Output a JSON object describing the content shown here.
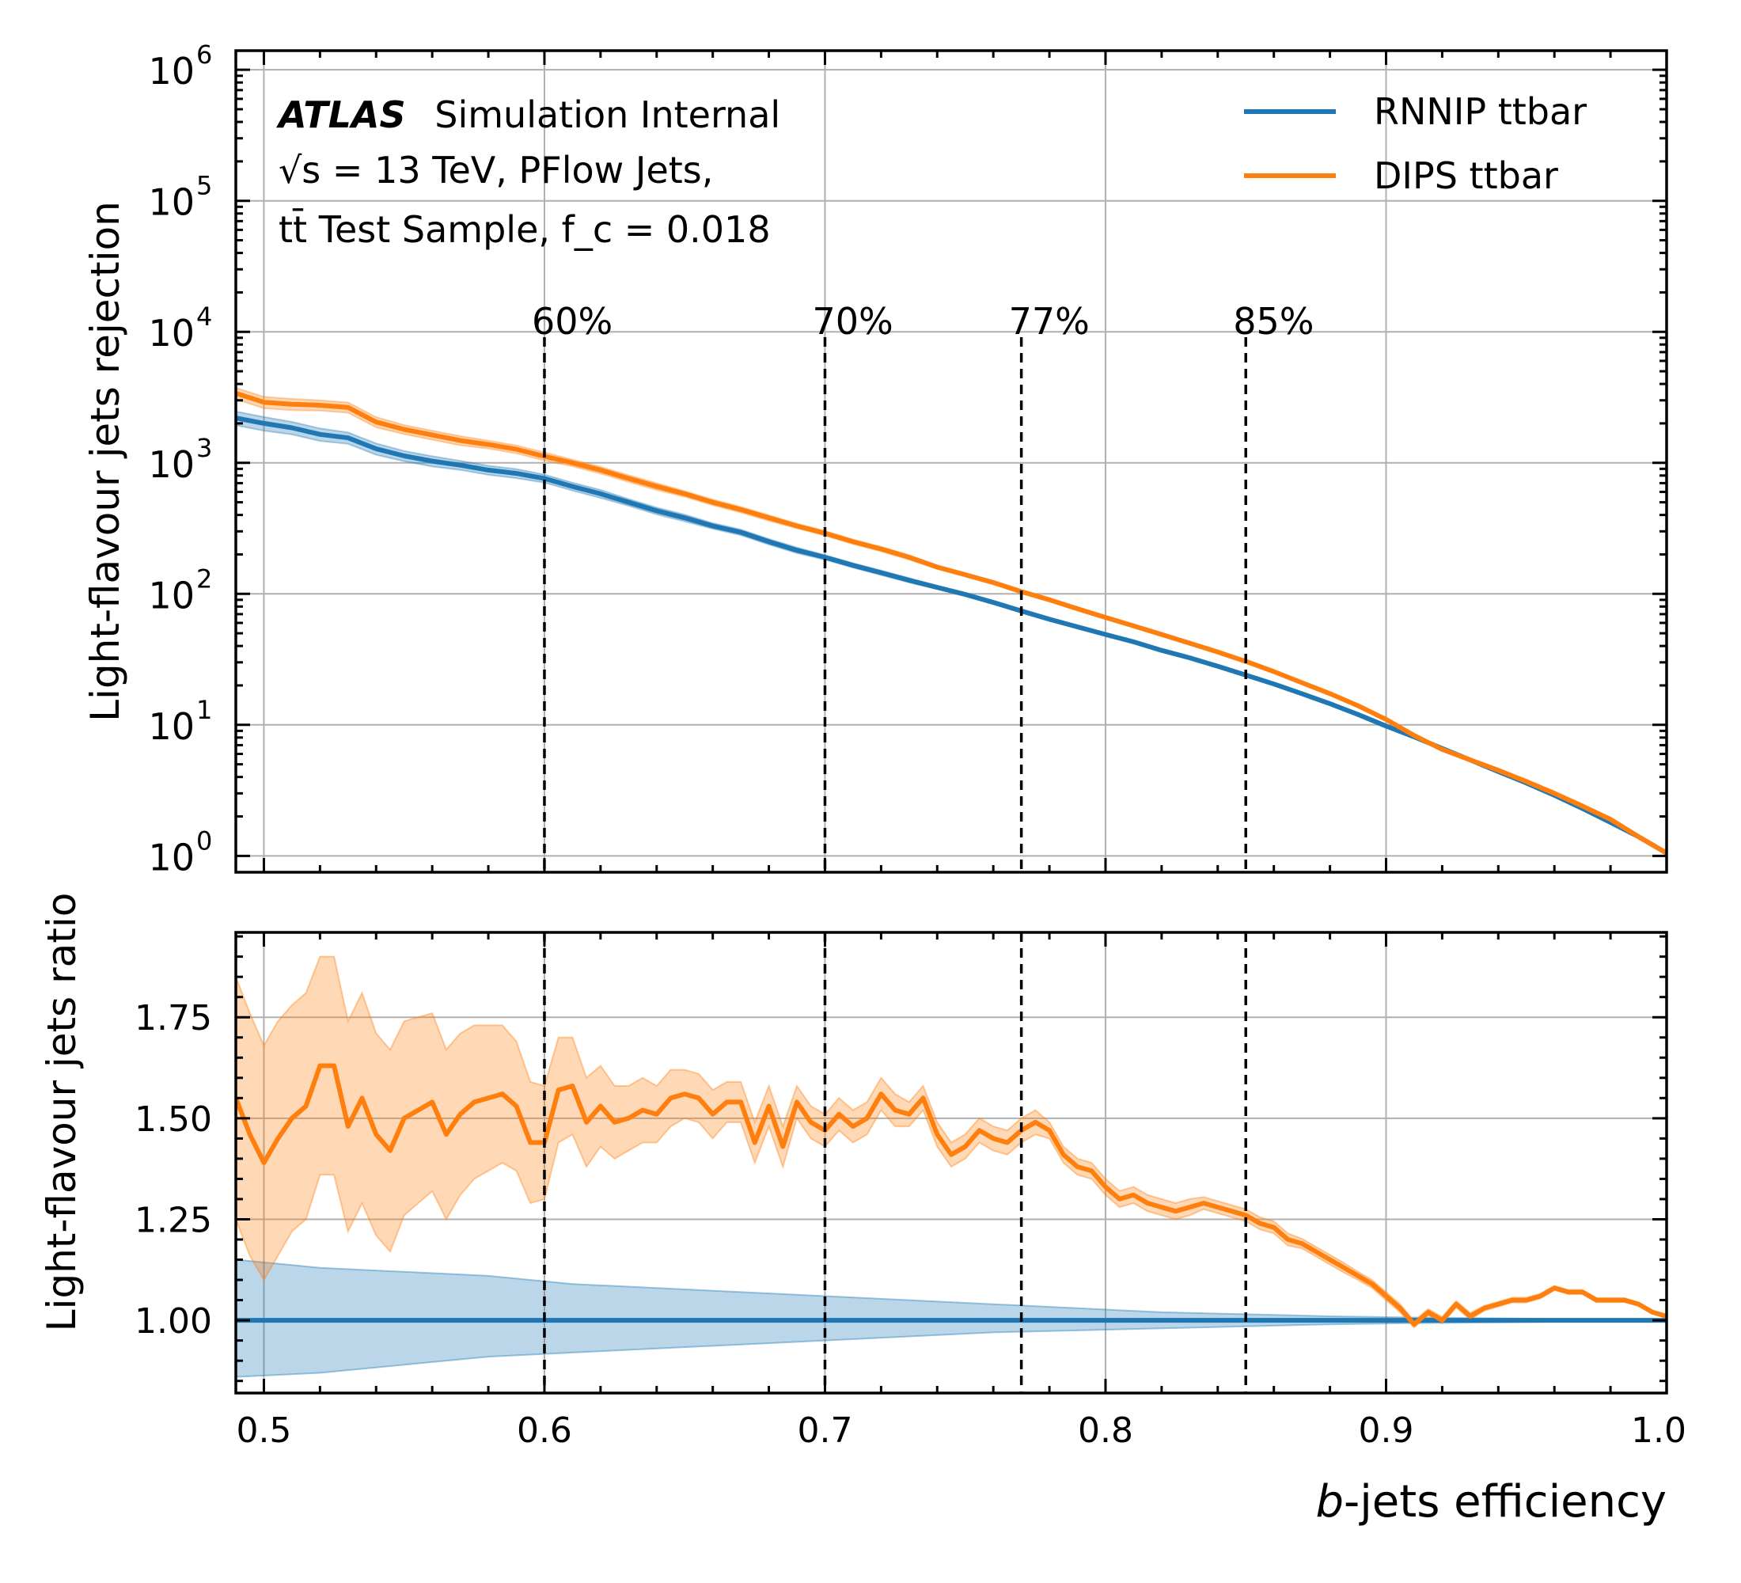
{
  "chart_data": [
    {
      "type": "line",
      "panel": "top",
      "y_scale": "log",
      "ylabel": "Light-flavour jets rejection",
      "xlim": [
        0.49,
        1.0
      ],
      "ylim": [
        0.75,
        1400000
      ],
      "y_ticks": [
        1,
        10,
        100,
        1000,
        10000,
        100000,
        1000000
      ],
      "y_tick_labels": [
        {
          "base": "10",
          "exp": "0"
        },
        {
          "base": "10",
          "exp": "1"
        },
        {
          "base": "10",
          "exp": "2"
        },
        {
          "base": "10",
          "exp": "3"
        },
        {
          "base": "10",
          "exp": "4"
        },
        {
          "base": "10",
          "exp": "5"
        },
        {
          "base": "10",
          "exp": "6"
        }
      ],
      "grid": true,
      "legend_position": "top-right",
      "annotation": {
        "atlas": "ATLAS",
        "status": "Simulation Internal",
        "line2": "√s = 13 TeV, PFlow Jets,",
        "line3": "tt̄ Test Sample, f_c = 0.018"
      },
      "working_points": [
        {
          "x": 0.6,
          "label": "60%"
        },
        {
          "x": 0.7,
          "label": "70%"
        },
        {
          "x": 0.77,
          "label": "77%"
        },
        {
          "x": 0.85,
          "label": "85%"
        }
      ],
      "x": [
        0.49,
        0.5,
        0.51,
        0.52,
        0.53,
        0.54,
        0.55,
        0.56,
        0.57,
        0.58,
        0.59,
        0.6,
        0.61,
        0.62,
        0.63,
        0.64,
        0.65,
        0.66,
        0.67,
        0.68,
        0.69,
        0.7,
        0.71,
        0.72,
        0.73,
        0.74,
        0.75,
        0.76,
        0.77,
        0.78,
        0.79,
        0.8,
        0.81,
        0.82,
        0.83,
        0.84,
        0.85,
        0.86,
        0.87,
        0.88,
        0.89,
        0.9,
        0.91,
        0.92,
        0.93,
        0.94,
        0.95,
        0.96,
        0.97,
        0.98,
        0.99,
        1.0
      ],
      "series": [
        {
          "name": "RNNIP ttbar",
          "color": "#1f77b4",
          "values": [
            2200,
            2000,
            1850,
            1650,
            1550,
            1280,
            1130,
            1030,
            960,
            880,
            830,
            760,
            660,
            580,
            500,
            430,
            380,
            330,
            295,
            250,
            215,
            190,
            165,
            145,
            127,
            112,
            99,
            86,
            74,
            64,
            56,
            49,
            43,
            37,
            32.5,
            28,
            24,
            20.5,
            17.3,
            14.5,
            12,
            9.8,
            8.1,
            6.6,
            5.4,
            4.4,
            3.6,
            2.9,
            2.3,
            1.8,
            1.4,
            1.05
          ],
          "band": [
            0.12,
            0.12,
            0.11,
            0.11,
            0.1,
            0.1,
            0.09,
            0.09,
            0.08,
            0.08,
            0.08,
            0.07,
            0.07,
            0.07,
            0.06,
            0.06,
            0.06,
            0.05,
            0.05,
            0.05,
            0.05,
            0.04,
            0.04,
            0.04,
            0.04,
            0.03,
            0.03,
            0.03,
            0.03,
            0.03,
            0.02,
            0.02,
            0.02,
            0.02,
            0.02,
            0.02,
            0.01,
            0.01,
            0.01,
            0.01,
            0.01,
            0.01,
            0.01,
            0.01,
            0.01,
            0.01,
            0.005,
            0.005,
            0.005,
            0.005,
            0.005,
            0.005
          ]
        },
        {
          "name": "DIPS ttbar",
          "color": "#ff7f0e",
          "values": [
            3400,
            2900,
            2800,
            2750,
            2650,
            2050,
            1800,
            1630,
            1480,
            1380,
            1270,
            1120,
            1000,
            880,
            760,
            660,
            580,
            500,
            440,
            380,
            330,
            290,
            250,
            220,
            190,
            160,
            140,
            122,
            104,
            90,
            77,
            66,
            57,
            49,
            42,
            36,
            30.5,
            25.5,
            21,
            17.3,
            14,
            11,
            8.3,
            6.5,
            5.4,
            4.5,
            3.7,
            3.0,
            2.4,
            1.9,
            1.4,
            1.05
          ],
          "band": [
            0.1,
            0.1,
            0.1,
            0.09,
            0.09,
            0.09,
            0.08,
            0.08,
            0.08,
            0.07,
            0.07,
            0.07,
            0.06,
            0.06,
            0.06,
            0.06,
            0.05,
            0.05,
            0.05,
            0.05,
            0.04,
            0.04,
            0.04,
            0.04,
            0.04,
            0.03,
            0.03,
            0.03,
            0.03,
            0.03,
            0.02,
            0.02,
            0.02,
            0.02,
            0.02,
            0.02,
            0.01,
            0.01,
            0.01,
            0.01,
            0.01,
            0.01,
            0.01,
            0.01,
            0.01,
            0.01,
            0.005,
            0.005,
            0.005,
            0.005,
            0.005,
            0.005
          ]
        }
      ]
    },
    {
      "type": "line",
      "panel": "bottom",
      "ylabel": "Light-flavour jets ratio",
      "xlabel_italic": "b",
      "xlabel_rest": "-jets efficiency",
      "xlim": [
        0.49,
        1.0
      ],
      "ylim": [
        0.82,
        1.96
      ],
      "x_ticks": [
        0.5,
        0.6,
        0.7,
        0.8,
        0.9,
        1.0
      ],
      "x_tick_labels": [
        "0.5",
        "0.6",
        "0.7",
        "0.8",
        "0.9",
        "1.0"
      ],
      "y_ticks": [
        1.0,
        1.25,
        1.5,
        1.75
      ],
      "y_tick_labels": [
        "1.00",
        "1.25",
        "1.50",
        "1.75"
      ],
      "grid": true,
      "working_points": [
        0.6,
        0.7,
        0.77,
        0.85
      ],
      "reference": {
        "name": "RNNIP ttbar",
        "color": "#1f77b4",
        "x": [
          0.49,
          0.52,
          0.55,
          0.58,
          0.61,
          0.64,
          0.67,
          0.7,
          0.73,
          0.76,
          0.79,
          0.82,
          0.85,
          0.88,
          0.91,
          0.94,
          0.97,
          1.0
        ],
        "value": 1.0,
        "upper": [
          1.15,
          1.13,
          1.12,
          1.11,
          1.09,
          1.08,
          1.07,
          1.06,
          1.05,
          1.04,
          1.03,
          1.02,
          1.015,
          1.01,
          1.007,
          1.005,
          1.003,
          1.002
        ],
        "lower": [
          0.86,
          0.87,
          0.89,
          0.91,
          0.92,
          0.93,
          0.94,
          0.95,
          0.96,
          0.97,
          0.975,
          0.98,
          0.985,
          0.99,
          0.993,
          0.995,
          0.997,
          0.998
        ]
      },
      "ratio": {
        "name": "DIPS ttbar",
        "color": "#ff7f0e",
        "x": [
          0.49,
          0.495,
          0.5,
          0.505,
          0.51,
          0.515,
          0.52,
          0.525,
          0.53,
          0.535,
          0.54,
          0.545,
          0.55,
          0.555,
          0.56,
          0.565,
          0.57,
          0.575,
          0.58,
          0.585,
          0.59,
          0.595,
          0.6,
          0.605,
          0.61,
          0.615,
          0.62,
          0.625,
          0.63,
          0.635,
          0.64,
          0.645,
          0.65,
          0.655,
          0.66,
          0.665,
          0.67,
          0.675,
          0.68,
          0.685,
          0.69,
          0.695,
          0.7,
          0.705,
          0.71,
          0.715,
          0.72,
          0.725,
          0.73,
          0.735,
          0.74,
          0.745,
          0.75,
          0.755,
          0.76,
          0.765,
          0.77,
          0.775,
          0.78,
          0.785,
          0.79,
          0.795,
          0.8,
          0.805,
          0.81,
          0.815,
          0.82,
          0.825,
          0.83,
          0.835,
          0.84,
          0.845,
          0.85,
          0.855,
          0.86,
          0.865,
          0.87,
          0.875,
          0.88,
          0.885,
          0.89,
          0.895,
          0.9,
          0.905,
          0.91,
          0.915,
          0.92,
          0.925,
          0.93,
          0.935,
          0.94,
          0.945,
          0.95,
          0.955,
          0.96,
          0.965,
          0.97,
          0.975,
          0.98,
          0.985,
          0.99,
          0.995,
          1.0
        ],
        "values": [
          1.55,
          1.46,
          1.39,
          1.45,
          1.5,
          1.53,
          1.63,
          1.63,
          1.48,
          1.55,
          1.46,
          1.42,
          1.5,
          1.52,
          1.54,
          1.46,
          1.51,
          1.54,
          1.55,
          1.56,
          1.53,
          1.44,
          1.44,
          1.57,
          1.58,
          1.49,
          1.53,
          1.49,
          1.5,
          1.52,
          1.51,
          1.55,
          1.56,
          1.55,
          1.51,
          1.54,
          1.54,
          1.44,
          1.53,
          1.43,
          1.54,
          1.49,
          1.47,
          1.51,
          1.48,
          1.5,
          1.56,
          1.52,
          1.51,
          1.55,
          1.46,
          1.41,
          1.43,
          1.47,
          1.45,
          1.44,
          1.47,
          1.49,
          1.47,
          1.41,
          1.38,
          1.37,
          1.33,
          1.3,
          1.31,
          1.29,
          1.28,
          1.27,
          1.28,
          1.29,
          1.28,
          1.27,
          1.26,
          1.24,
          1.23,
          1.2,
          1.19,
          1.17,
          1.15,
          1.13,
          1.11,
          1.09,
          1.06,
          1.03,
          0.99,
          1.02,
          1.0,
          1.04,
          1.01,
          1.03,
          1.04,
          1.05,
          1.05,
          1.06,
          1.08,
          1.07,
          1.07,
          1.05,
          1.05,
          1.05,
          1.04,
          1.02,
          1.01
        ],
        "band": [
          0.3,
          0.3,
          0.29,
          0.29,
          0.28,
          0.28,
          0.27,
          0.27,
          0.26,
          0.26,
          0.25,
          0.25,
          0.24,
          0.23,
          0.22,
          0.21,
          0.2,
          0.19,
          0.18,
          0.17,
          0.16,
          0.15,
          0.14,
          0.13,
          0.12,
          0.11,
          0.1,
          0.09,
          0.08,
          0.08,
          0.07,
          0.07,
          0.06,
          0.06,
          0.06,
          0.05,
          0.05,
          0.05,
          0.05,
          0.05,
          0.04,
          0.04,
          0.04,
          0.04,
          0.04,
          0.04,
          0.04,
          0.04,
          0.03,
          0.03,
          0.03,
          0.03,
          0.03,
          0.03,
          0.03,
          0.03,
          0.03,
          0.03,
          0.02,
          0.02,
          0.02,
          0.02,
          0.02,
          0.02,
          0.02,
          0.02,
          0.02,
          0.02,
          0.02,
          0.015,
          0.015,
          0.015,
          0.015,
          0.015,
          0.015,
          0.015,
          0.012,
          0.012,
          0.012,
          0.012,
          0.01,
          0.01,
          0.01,
          0.01,
          0.008,
          0.008,
          0.008,
          0.008,
          0.008,
          0.006,
          0.006,
          0.006,
          0.006,
          0.006,
          0.005,
          0.005,
          0.005,
          0.005,
          0.005,
          0.005,
          0.004,
          0.004,
          0.004
        ]
      }
    }
  ]
}
